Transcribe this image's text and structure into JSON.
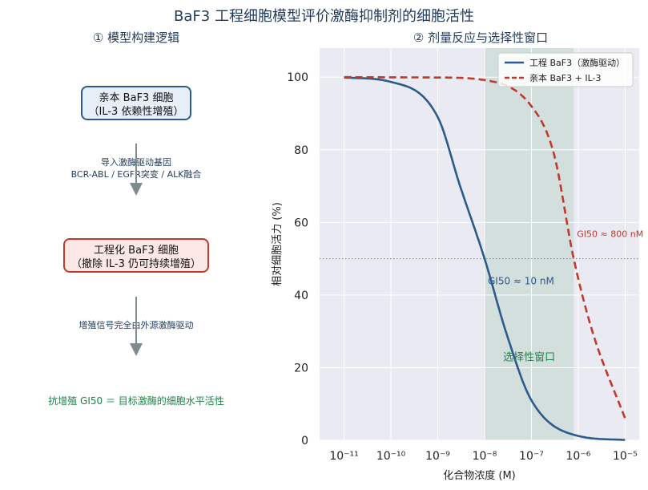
{
  "title": "BaF3 工程细胞模型评价激酶抑制剂的细胞活性",
  "left_panel": {
    "subtitle": "① 模型构建逻辑",
    "box1_line1": "亲本 BaF3 细胞",
    "box1_line2": "（IL-3 依赖性增殖）",
    "note1_line1": "导入激酶驱动基因",
    "note1_line2": "BCR-ABL / EGFR突变 / ALK融合",
    "box2_line1": "工程化 BaF3 细胞",
    "box2_line2": "（撤除 IL-3 仍可持续增殖）",
    "note2": "增殖信号完全由外源激酶驱动",
    "conclusion": "抗增殖 GI50 ＝ 目标激酶的细胞水平活性"
  },
  "right_panel": {
    "subtitle": "② 剂量反应与选择性窗口"
  },
  "chart_data": {
    "type": "line",
    "x_scale": "log",
    "xlabel": "化合物浓度 (M)",
    "ylabel": "相对细胞活力 (%)",
    "xlim": [
      3e-12,
      2e-05
    ],
    "ylim": [
      0,
      108
    ],
    "x_ticks": [
      "10⁻¹¹",
      "10⁻¹⁰",
      "10⁻⁹",
      "10⁻⁸",
      "10⁻⁷",
      "10⁻⁶",
      "10⁻⁵"
    ],
    "y_ticks": [
      0,
      20,
      40,
      60,
      80,
      100
    ],
    "grid": true,
    "legend_position": "top-right",
    "series": [
      {
        "name": "工程 BaF3（激酶驱动）",
        "style": "solid",
        "color": "#2c5a8c",
        "x": [
          1e-11,
          1e-10,
          1e-09,
          3e-09,
          1e-08,
          3e-08,
          1e-07,
          1e-06,
          1e-05
        ],
        "y": [
          99.9,
          98.7,
          89,
          70,
          50,
          29,
          11,
          1.2,
          0.1
        ]
      },
      {
        "name": "亲本 BaF3 + IL-3",
        "style": "dashed",
        "color": "#c0392b",
        "x": [
          1e-11,
          1e-09,
          1e-08,
          1e-07,
          3e-07,
          8e-07,
          2e-06,
          1e-05
        ],
        "y": [
          100,
          99.9,
          99.2,
          92,
          79,
          50,
          30,
          6
        ]
      }
    ],
    "reference_line": {
      "y": 50,
      "style": "dotted"
    },
    "selectivity_window": {
      "x_from": 1e-08,
      "x_to": 8e-07,
      "label": "选择性窗口"
    },
    "annotations": [
      {
        "text": "GI50 ≈ 10 nM",
        "x": 1e-08,
        "y": 43,
        "color": "#2c5a8c"
      },
      {
        "text": "GI50 ≈ 800 nM",
        "x": 8e-07,
        "y": 56,
        "color": "#c0392b"
      }
    ]
  }
}
